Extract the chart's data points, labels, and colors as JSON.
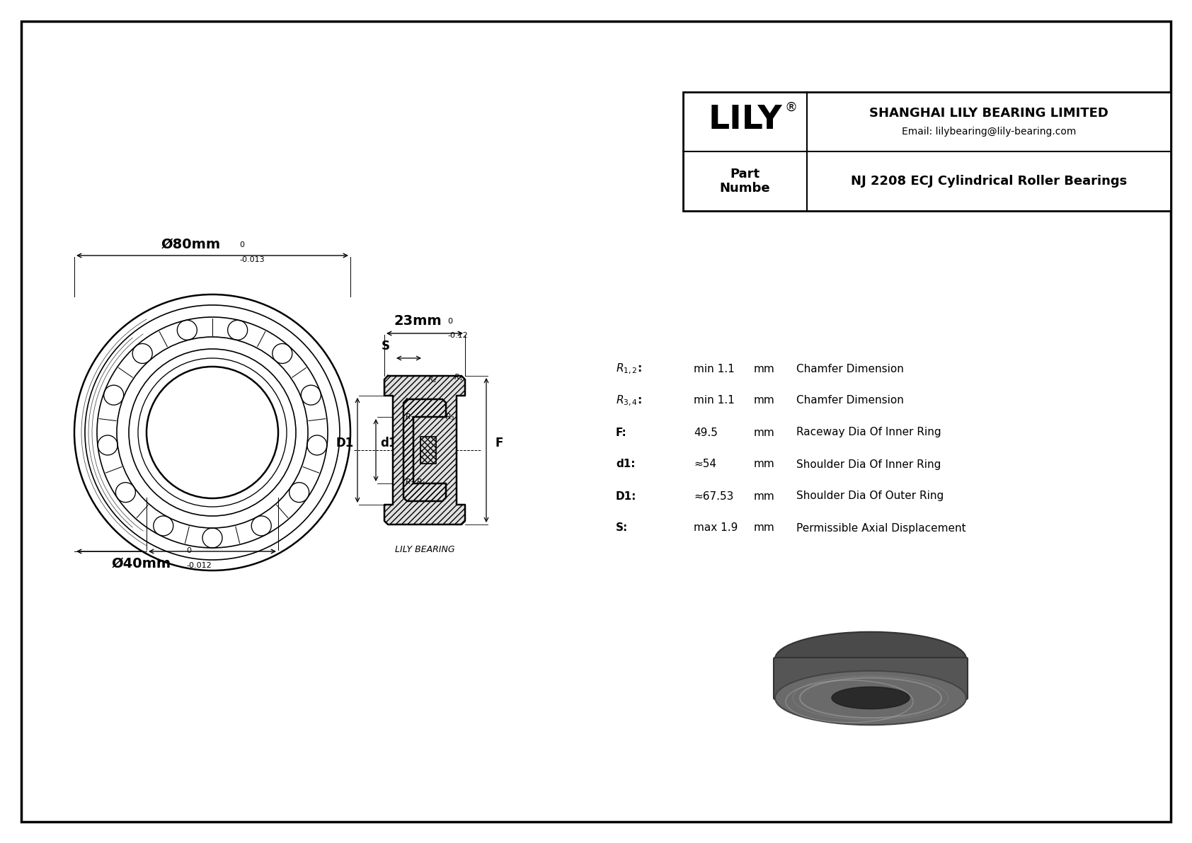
{
  "bg_color": "#ffffff",
  "border_color": "#000000",
  "title": "NJ 2208 ECJ Cylindrical Roller Bearings",
  "company": "SHANGHAI LILY BEARING LIMITED",
  "email": "Email: lilybearing@lily-bearing.com",
  "part_label": "Part\nNumbe",
  "brand": "LILY",
  "brand_reg": "®",
  "watermark": "LILY BEARING",
  "outer_dia": "Ø80mm",
  "outer_tol_up": "0",
  "outer_tol_dn": "-0.013",
  "inner_dia": "Ø40mm",
  "inner_tol_up": "0",
  "inner_tol_dn": "-0.012",
  "width_dim": "23mm",
  "width_tol_up": "0",
  "width_tol_dn": "-0.12",
  "lbl_S": "S",
  "lbl_D1": "D1",
  "lbl_d1": "d1",
  "lbl_F": "F",
  "specs": [
    {
      "param": "R1,2:",
      "value": "min 1.1",
      "unit": "mm",
      "desc": "Chamfer Dimension"
    },
    {
      "param": "R3,4:",
      "value": "min 1.1",
      "unit": "mm",
      "desc": "Chamfer Dimension"
    },
    {
      "param": "F:",
      "value": "49.5",
      "unit": "mm",
      "desc": "Raceway Dia Of Inner Ring"
    },
    {
      "param": "d1:",
      "value": "≈54",
      "unit": "mm",
      "desc": "Shoulder Dia Of Inner Ring"
    },
    {
      "param": "D1:",
      "value": "≈67.53",
      "unit": "mm",
      "desc": "Shoulder Dia Of Outer Ring"
    },
    {
      "param": "S:",
      "value": "max 1.9",
      "unit": "mm",
      "desc": "Permissible Axial Displacement"
    }
  ],
  "spec_param_sub": [
    "1,2",
    "3,4",
    "",
    "",
    "",
    ""
  ],
  "spec_param_base": [
    "R",
    "R",
    "F:",
    "d1:",
    "D1:",
    "S:"
  ]
}
